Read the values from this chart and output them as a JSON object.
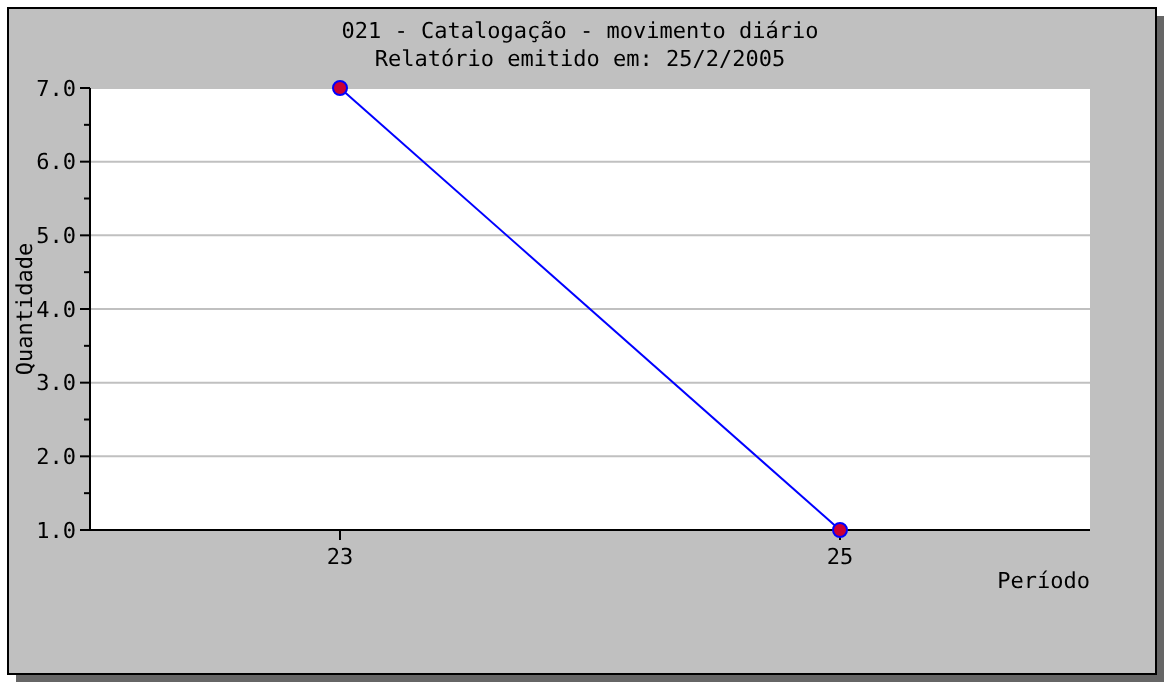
{
  "chart_data": {
    "type": "line",
    "title": "021 - Catalogação - movimento diário",
    "subtitle": "Relatório emitido em: 25/2/2005",
    "xlabel": "Período",
    "ylabel": "Quantidade",
    "categories": [
      "23",
      "25"
    ],
    "series": [
      {
        "color": "#0000ff",
        "values": [
          7,
          1
        ]
      }
    ],
    "ylim": [
      1,
      7
    ],
    "yticks": [
      {
        "value": 1,
        "label": "1.0"
      },
      {
        "value": 1.5,
        "label": null
      },
      {
        "value": 2,
        "label": "2.0"
      },
      {
        "value": 2.5,
        "label": null
      },
      {
        "value": 3,
        "label": "3.0"
      },
      {
        "value": 3.5,
        "label": null
      },
      {
        "value": 4,
        "label": "4.0"
      },
      {
        "value": 4.5,
        "label": null
      },
      {
        "value": 5,
        "label": "5.0"
      },
      {
        "value": 5.5,
        "label": null
      },
      {
        "value": 6,
        "label": "6.0"
      },
      {
        "value": 6.5,
        "label": null
      },
      {
        "value": 7,
        "label": "7.0"
      }
    ],
    "grid": "y",
    "marker": "circle",
    "line_style": "solid"
  }
}
